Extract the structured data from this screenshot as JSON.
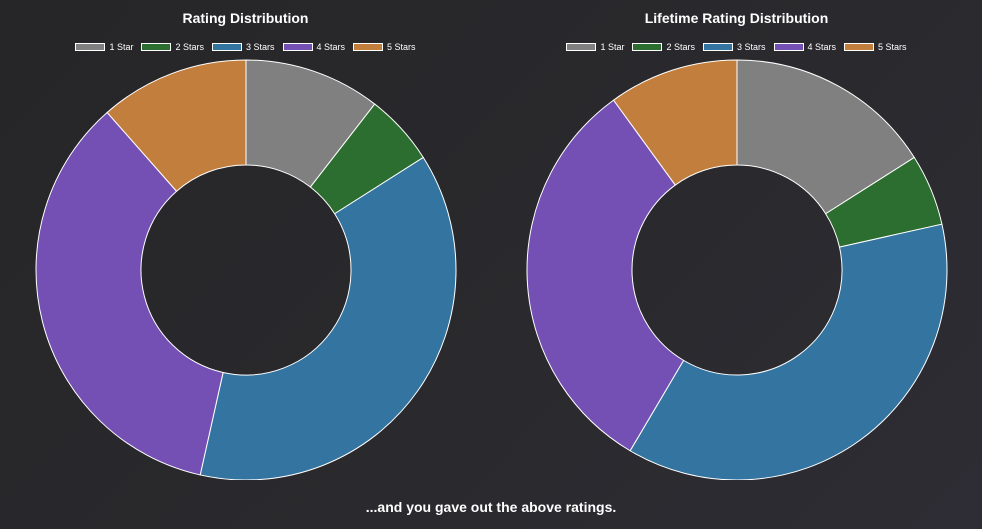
{
  "chart_data": [
    {
      "type": "pie",
      "title": "Rating Distribution",
      "categories": [
        "1 Star",
        "2 Stars",
        "3 Stars",
        "4 Stars",
        "5 Stars"
      ],
      "values": [
        10.5,
        5.5,
        37.5,
        35.0,
        11.5
      ],
      "colors": [
        "#808080",
        "#2c6e2f",
        "#3374a0",
        "#7450b5",
        "#c27e3d"
      ],
      "legend": "top"
    },
    {
      "type": "pie",
      "title": "Lifetime Rating Distribution",
      "categories": [
        "1 Star",
        "2 Stars",
        "3 Stars",
        "4 Stars",
        "5 Stars"
      ],
      "values": [
        16.0,
        5.5,
        37.0,
        31.5,
        10.0
      ],
      "colors": [
        "#808080",
        "#2c6e2f",
        "#3374a0",
        "#7450b5",
        "#c27e3d"
      ],
      "legend": "top"
    }
  ],
  "caption": "...and you gave out the above ratings."
}
